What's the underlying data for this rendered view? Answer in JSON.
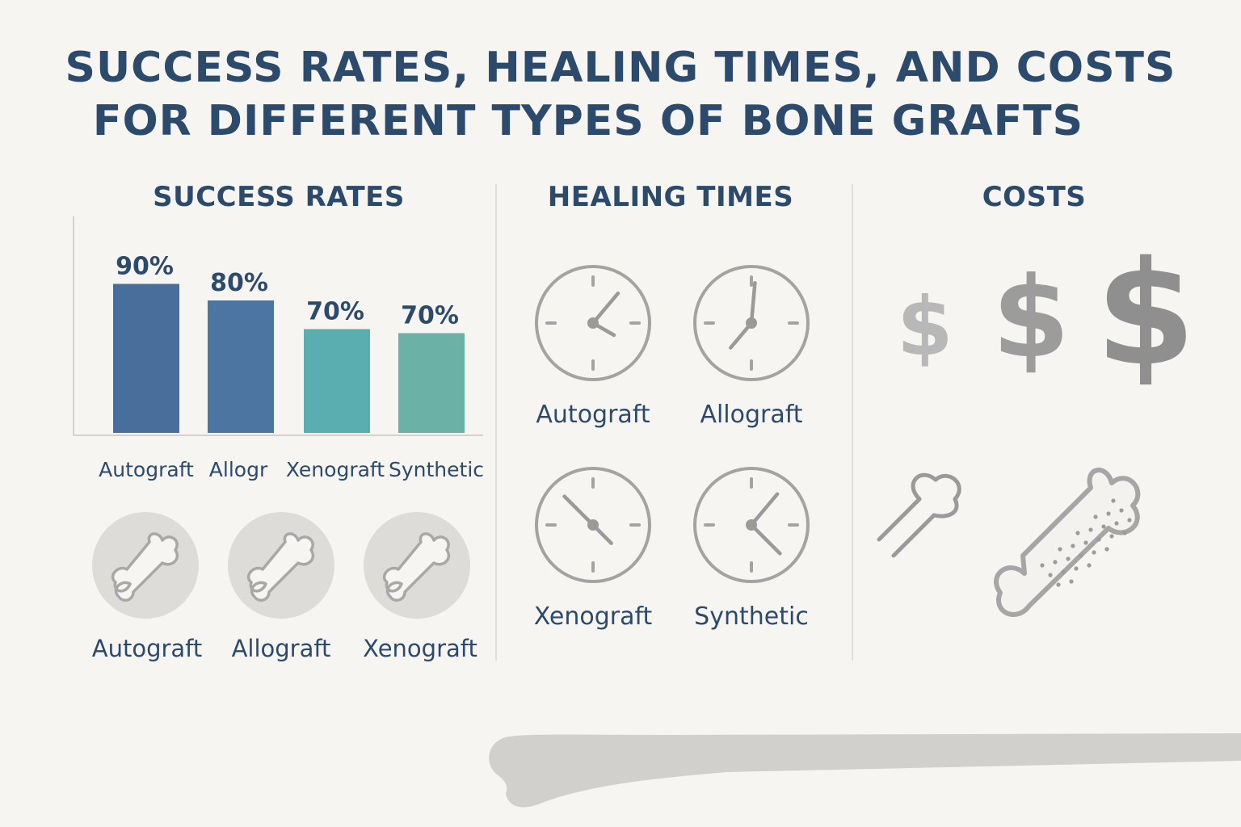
{
  "title": {
    "line1": "SUCCESS RATES, HEALING TIMES, AND COSTS",
    "line2": "FOR DIFFERENT TYPES OF BONE GRAFTS"
  },
  "sections": {
    "success": "SUCCESS RATES",
    "healing": "HEALING TIMES",
    "costs": "COSTS"
  },
  "chart_data": {
    "type": "bar",
    "categories": [
      "Autograft",
      "Allogr",
      "Xenograft",
      "Synthetic"
    ],
    "values": [
      90,
      80,
      70,
      70
    ],
    "data_labels": [
      "90%",
      "80%",
      "70%",
      "70%"
    ],
    "bar_colors": [
      "#4a6e9b",
      "#4d75a1",
      "#5aaeb0",
      "#6bb1a6"
    ]
  },
  "bone_badges": [
    {
      "label": "Autograft",
      "icon": "bone-icon"
    },
    {
      "label": "Allograft",
      "icon": "bone-icon"
    },
    {
      "label": "Xenograft",
      "icon": "bone-icon"
    }
  ],
  "healing_clocks": [
    {
      "label": "Autograft",
      "icon": "clock-icon"
    },
    {
      "label": "Allograft",
      "icon": "clock-icon"
    },
    {
      "label": "Xenograft",
      "icon": "clock-icon"
    },
    {
      "label": "Synthetic",
      "icon": "clock-icon"
    }
  ],
  "cost_symbols": [
    "$",
    "$",
    "$"
  ],
  "colors": {
    "background": "#f7f5f1",
    "heading": "#2c4a6b",
    "icon_gray": "#9a9a9a",
    "badge_gray": "#dddcd9"
  }
}
